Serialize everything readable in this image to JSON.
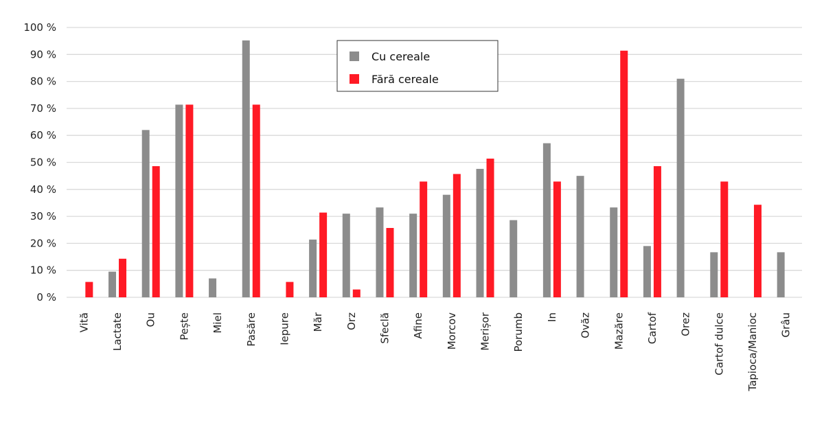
{
  "chart_data": {
    "type": "bar",
    "categories": [
      "Vită",
      "Lactate",
      "Ou",
      "Pește",
      "Miel",
      "Pasăre",
      "Iepure",
      "Măr",
      "Orz",
      "Sfeclă",
      "Afine",
      "Morcov",
      "Merișor",
      "Porumb",
      "In",
      "Ovăz",
      "Mazăre",
      "Cartof",
      "Orez",
      "Cartof dulce",
      "Tapioca/Manioc",
      "Grâu"
    ],
    "series": [
      {
        "name": "Cu cereale",
        "color": "#8c8c8c",
        "values": [
          0,
          9.5,
          62,
          71.4,
          7,
          95.2,
          0,
          21.4,
          31,
          33.3,
          31,
          38,
          47.6,
          28.6,
          57.1,
          45,
          33.3,
          19,
          81,
          16.7,
          0,
          16.7
        ]
      },
      {
        "name": "Fără cereale",
        "color": "#ff1a25",
        "values": [
          5.7,
          14.3,
          48.6,
          71.4,
          0,
          71.4,
          5.7,
          31.4,
          2.9,
          25.7,
          42.9,
          45.7,
          51.4,
          0,
          42.9,
          0,
          91.4,
          48.6,
          0,
          42.9,
          34.3,
          0
        ]
      }
    ],
    "yticks": [
      "0 %",
      "10 %",
      "20 %",
      "30 %",
      "40 %",
      "50 %",
      "60 %",
      "70 %",
      "80 %",
      "90 %",
      "100 %"
    ],
    "ylim": [
      0,
      100
    ],
    "grid": true,
    "legend": "top-center"
  }
}
